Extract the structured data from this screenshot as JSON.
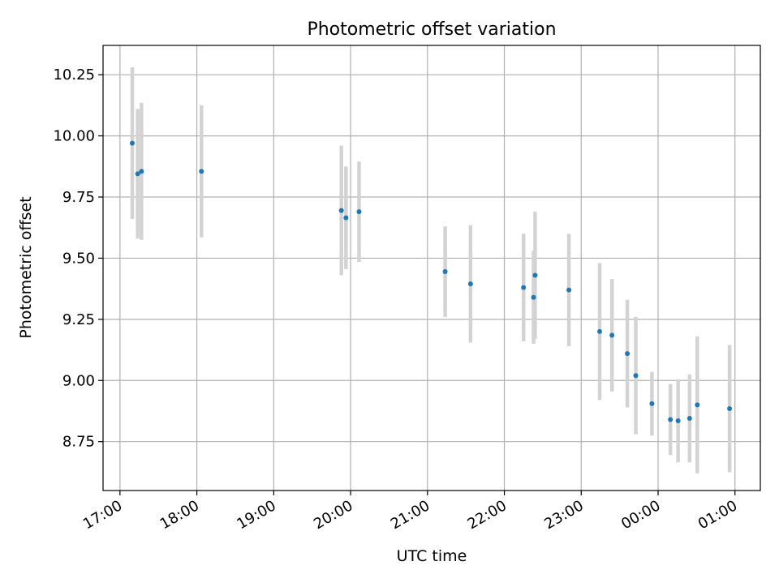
{
  "chart_data": {
    "type": "scatter",
    "title": "Photometric offset variation",
    "xlabel": "UTC time",
    "ylabel": "Photometric offset",
    "x_unit": "hours (UTC, continuing past midnight)",
    "xlim": [
      16.78,
      25.33
    ],
    "ylim": [
      8.55,
      10.37
    ],
    "x_ticks": [
      17,
      18,
      19,
      20,
      21,
      22,
      23,
      24,
      25
    ],
    "x_tick_labels": [
      "17:00",
      "18:00",
      "19:00",
      "20:00",
      "21:00",
      "22:00",
      "23:00",
      "00:00",
      "01:00"
    ],
    "y_ticks": [
      8.75,
      9.0,
      9.25,
      9.5,
      9.75,
      10.0,
      10.25
    ],
    "y_tick_labels": [
      "8.75",
      "9.00",
      "9.25",
      "9.50",
      "9.75",
      "10.00",
      "10.25"
    ],
    "grid": true,
    "legend": "none",
    "point_color": "#1f77b4",
    "errorbar_color": "#d3d3d3",
    "points": [
      {
        "x": 17.16,
        "y": 9.97,
        "yerr": 0.31
      },
      {
        "x": 17.23,
        "y": 9.845,
        "yerr": 0.265
      },
      {
        "x": 17.28,
        "y": 9.855,
        "yerr": 0.28
      },
      {
        "x": 18.06,
        "y": 9.855,
        "yerr": 0.27
      },
      {
        "x": 19.88,
        "y": 9.695,
        "yerr": 0.265
      },
      {
        "x": 19.94,
        "y": 9.665,
        "yerr": 0.21
      },
      {
        "x": 20.11,
        "y": 9.69,
        "yerr": 0.205
      },
      {
        "x": 21.23,
        "y": 9.445,
        "yerr": 0.185
      },
      {
        "x": 21.56,
        "y": 9.395,
        "yerr": 0.24
      },
      {
        "x": 22.25,
        "y": 9.38,
        "yerr": 0.22
      },
      {
        "x": 22.38,
        "y": 9.34,
        "yerr": 0.19
      },
      {
        "x": 22.4,
        "y": 9.43,
        "yerr": 0.26
      },
      {
        "x": 22.84,
        "y": 9.37,
        "yerr": 0.23
      },
      {
        "x": 23.24,
        "y": 9.2,
        "yerr": 0.28
      },
      {
        "x": 23.4,
        "y": 9.185,
        "yerr": 0.23
      },
      {
        "x": 23.6,
        "y": 9.11,
        "yerr": 0.22
      },
      {
        "x": 23.71,
        "y": 9.02,
        "yerr": 0.24
      },
      {
        "x": 23.92,
        "y": 8.905,
        "yerr": 0.13
      },
      {
        "x": 24.16,
        "y": 8.84,
        "yerr": 0.145
      },
      {
        "x": 24.26,
        "y": 8.835,
        "yerr": 0.17
      },
      {
        "x": 24.41,
        "y": 8.845,
        "yerr": 0.18
      },
      {
        "x": 24.51,
        "y": 8.9,
        "yerr": 0.28
      },
      {
        "x": 24.93,
        "y": 8.885,
        "yerr": 0.26
      }
    ]
  }
}
